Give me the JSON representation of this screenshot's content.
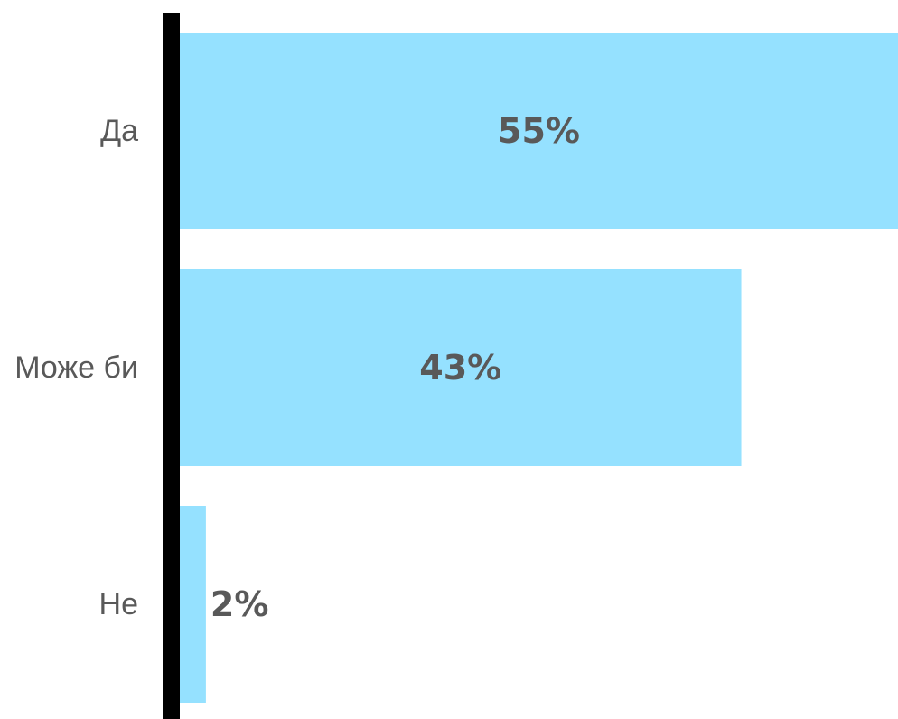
{
  "chart_data": {
    "type": "bar",
    "orientation": "horizontal",
    "categories": [
      "Да",
      "Може би",
      "Не"
    ],
    "values": [
      55,
      43,
      2
    ],
    "value_labels": [
      "55%",
      "43%",
      "2%"
    ],
    "xlim": [
      0,
      55
    ],
    "bar_color": "#95E1FF",
    "axis_color": "#000000",
    "label_color": "#595959"
  }
}
